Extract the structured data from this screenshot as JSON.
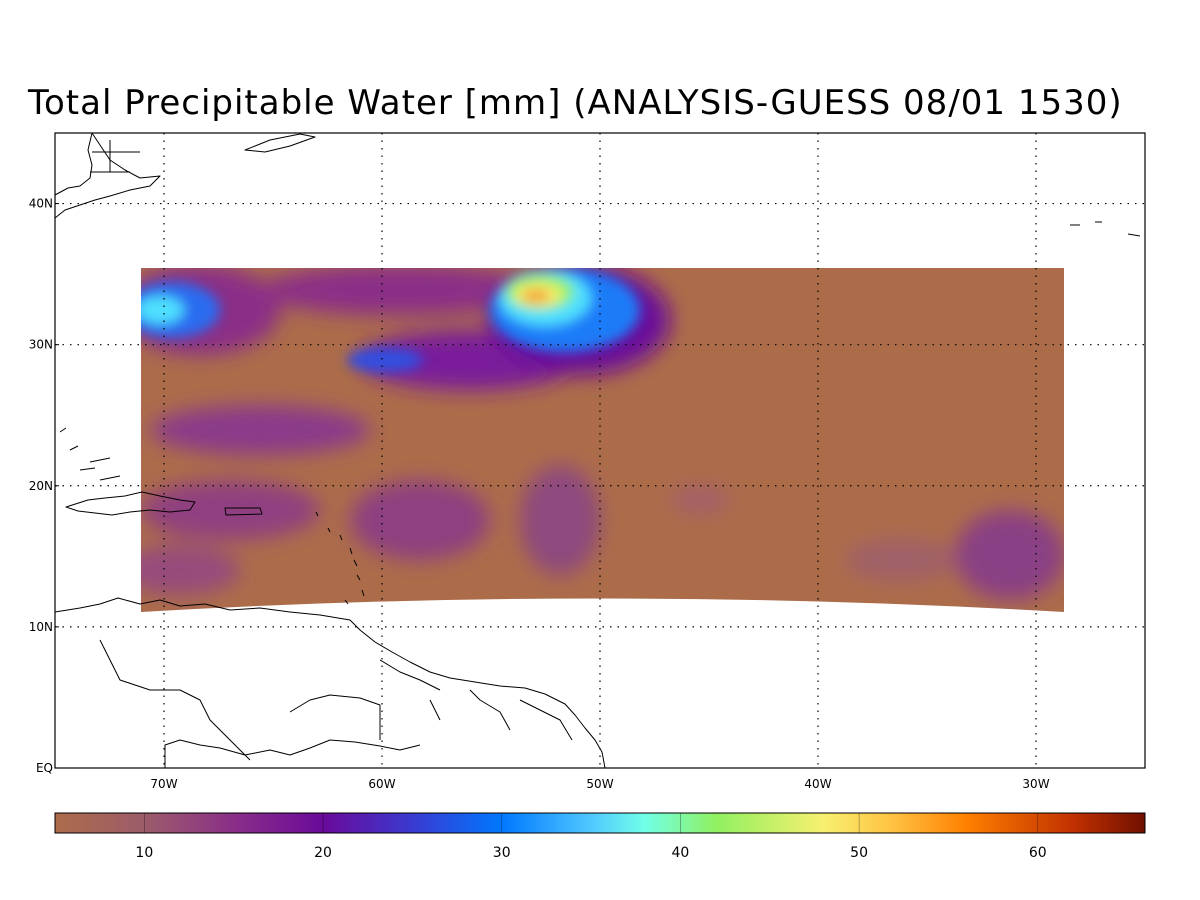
{
  "title": "Total Precipitable Water [mm] (ANALYSIS-GUESS    08/01 1530)",
  "map": {
    "lon_range": [
      -75,
      -25
    ],
    "lat_range": [
      0,
      45
    ],
    "lat_ticks": [
      {
        "value": 40,
        "label": "40N"
      },
      {
        "value": 30,
        "label": "30N"
      },
      {
        "value": 20,
        "label": "20N"
      },
      {
        "value": 10,
        "label": "10N"
      },
      {
        "value": 0,
        "label": "EQ"
      }
    ],
    "lon_ticks": [
      {
        "value": -70,
        "label": "70W"
      },
      {
        "value": -60,
        "label": "60W"
      },
      {
        "value": -50,
        "label": "50W"
      },
      {
        "value": -40,
        "label": "40W"
      },
      {
        "value": -30,
        "label": "30W"
      }
    ],
    "grid": true,
    "field_colors": {
      "background": "#ac6c4a",
      "low": "#a06060",
      "mid": "#7a1f9a",
      "blue": "#2a6cf0",
      "cyan": "#50e0ff",
      "green": "#80f070",
      "yellow": "#ffe060",
      "orange": "#f4a030"
    }
  },
  "colorbar": {
    "min": 5,
    "max": 66,
    "ticks": [
      {
        "value": 10,
        "label": "10"
      },
      {
        "value": 20,
        "label": "20"
      },
      {
        "value": 30,
        "label": "30"
      },
      {
        "value": 40,
        "label": "40"
      },
      {
        "value": 50,
        "label": "50"
      },
      {
        "value": 60,
        "label": "60"
      }
    ],
    "stops": [
      {
        "value": 5,
        "color": "#ac6c4a"
      },
      {
        "value": 10,
        "color": "#9c5c6a"
      },
      {
        "value": 15,
        "color": "#8a2f88"
      },
      {
        "value": 20,
        "color": "#6a0a9a"
      },
      {
        "value": 25,
        "color": "#3a3ad0"
      },
      {
        "value": 30,
        "color": "#0078ff"
      },
      {
        "value": 35,
        "color": "#50c8ff"
      },
      {
        "value": 38,
        "color": "#70ffe8"
      },
      {
        "value": 42,
        "color": "#90f060"
      },
      {
        "value": 48,
        "color": "#f8f070"
      },
      {
        "value": 52,
        "color": "#ffc040"
      },
      {
        "value": 56,
        "color": "#ff8000"
      },
      {
        "value": 62,
        "color": "#c03000"
      },
      {
        "value": 66,
        "color": "#701000"
      }
    ]
  }
}
